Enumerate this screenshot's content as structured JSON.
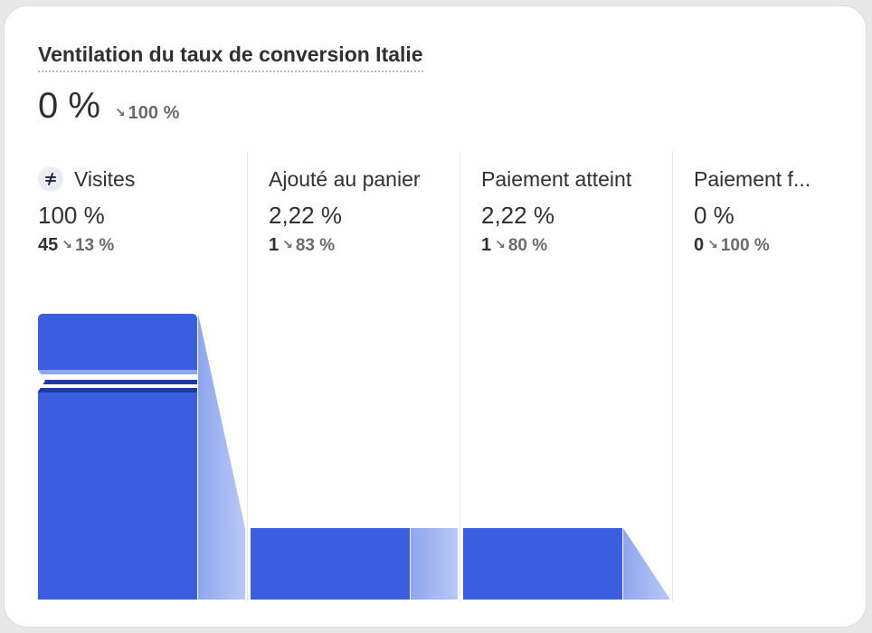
{
  "card": {
    "title": "Ventilation du taux de conversion Italie",
    "value": "0 %",
    "delta": "100 %",
    "delta_direction": "down"
  },
  "stages": [
    {
      "label": "Visites",
      "icon": "traffic-icon",
      "percent": "100 %",
      "count": "45",
      "delta": "13 %",
      "bar_fraction": 1.0
    },
    {
      "label": "Ajouté au panier",
      "percent": "2,22 %",
      "count": "1",
      "delta": "83 %",
      "bar_fraction": 0.25
    },
    {
      "label": "Paiement atteint",
      "percent": "2,22 %",
      "count": "1",
      "delta": "80 %",
      "bar_fraction": 0.25
    },
    {
      "label": "Paiement f...",
      "percent": "0 %",
      "count": "0",
      "delta": "100 %",
      "bar_fraction": 0.0
    }
  ],
  "colors": {
    "bar": "#3b5ee0",
    "bar_dark": "#1e3a9e",
    "dropoff_light": "#b9c8f7",
    "dropoff_dark": "#8ea6ef"
  }
}
